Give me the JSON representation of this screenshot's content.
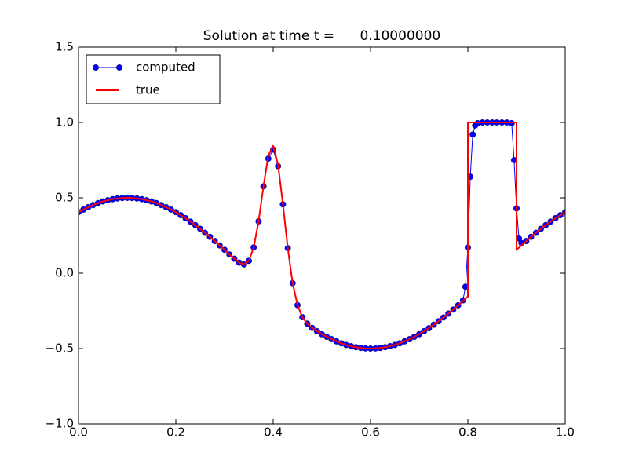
{
  "chart_data": {
    "type": "line",
    "title": "Solution at time t =      0.10000000",
    "legend": "upper left",
    "xlim": [
      0,
      1
    ],
    "ylim": [
      -1,
      1.5
    ],
    "xticks": [
      {
        "value": 0,
        "label": "0.0"
      },
      {
        "value": 0.2,
        "label": "0.2"
      },
      {
        "value": 0.4,
        "label": "0.4"
      },
      {
        "value": 0.6,
        "label": "0.6"
      },
      {
        "value": 0.8,
        "label": "0.8"
      },
      {
        "value": 1,
        "label": "1.0"
      }
    ],
    "yticks": [
      {
        "value": -1,
        "label": "−1.0"
      },
      {
        "value": -0.5,
        "label": "−0.5"
      },
      {
        "value": 0,
        "label": "0.0"
      },
      {
        "value": 0.5,
        "label": "0.5"
      },
      {
        "value": 1,
        "label": "1.0"
      },
      {
        "value": 1.5,
        "label": "1.5"
      }
    ],
    "series": [
      {
        "name": "computed",
        "color": "#0000ff",
        "marker": "o",
        "x": [
          0,
          0.01,
          0.02,
          0.03,
          0.04,
          0.05,
          0.06,
          0.07,
          0.08,
          0.09,
          0.1,
          0.11,
          0.12,
          0.13,
          0.14,
          0.15,
          0.16,
          0.17,
          0.18,
          0.19,
          0.2,
          0.21,
          0.22,
          0.23,
          0.24,
          0.25,
          0.26,
          0.27,
          0.28,
          0.29,
          0.3,
          0.31,
          0.32,
          0.33,
          0.34,
          0.35,
          0.36,
          0.37,
          0.38,
          0.39,
          0.4,
          0.41,
          0.42,
          0.43,
          0.44,
          0.45,
          0.46,
          0.47,
          0.48,
          0.49,
          0.5,
          0.51,
          0.52,
          0.53,
          0.54,
          0.55,
          0.56,
          0.57,
          0.58,
          0.59,
          0.6,
          0.61,
          0.62,
          0.63,
          0.64,
          0.65,
          0.66,
          0.67,
          0.68,
          0.69,
          0.7,
          0.71,
          0.72,
          0.73,
          0.74,
          0.75,
          0.76,
          0.77,
          0.78,
          0.79,
          0.795,
          0.8,
          0.805,
          0.81,
          0.815,
          0.82,
          0.83,
          0.84,
          0.85,
          0.86,
          0.87,
          0.88,
          0.89,
          0.895,
          0.9,
          0.905,
          0.91,
          0.92,
          0.93,
          0.94,
          0.95,
          0.96,
          0.97,
          0.98,
          0.99,
          1
        ],
        "values": [
          0.405,
          0.422,
          0.438,
          0.452,
          0.465,
          0.476,
          0.484,
          0.491,
          0.496,
          0.499,
          0.5,
          0.499,
          0.496,
          0.491,
          0.484,
          0.476,
          0.465,
          0.452,
          0.438,
          0.422,
          0.405,
          0.385,
          0.365,
          0.342,
          0.319,
          0.294,
          0.268,
          0.241,
          0.213,
          0.184,
          0.155,
          0.124,
          0.096,
          0.07,
          0.058,
          0.082,
          0.171,
          0.344,
          0.576,
          0.76,
          0.82,
          0.71,
          0.457,
          0.166,
          -0.066,
          -0.212,
          -0.292,
          -0.335,
          -0.363,
          -0.385,
          -0.405,
          -0.422,
          -0.438,
          -0.452,
          -0.465,
          -0.476,
          -0.484,
          -0.491,
          -0.496,
          -0.499,
          -0.5,
          -0.499,
          -0.496,
          -0.491,
          -0.484,
          -0.476,
          -0.465,
          -0.452,
          -0.438,
          -0.422,
          -0.405,
          -0.385,
          -0.365,
          -0.342,
          -0.319,
          -0.294,
          -0.268,
          -0.241,
          -0.213,
          -0.18,
          -0.09,
          0.17,
          0.64,
          0.92,
          0.98,
          0.995,
          1,
          1,
          1,
          1,
          1,
          1,
          0.995,
          0.75,
          0.43,
          0.23,
          0.2,
          0.213,
          0.241,
          0.268,
          0.294,
          0.319,
          0.342,
          0.365,
          0.385,
          0.405
        ]
      },
      {
        "name": "true",
        "color": "#ff0000",
        "x": [
          0,
          0.01,
          0.02,
          0.03,
          0.04,
          0.05,
          0.06,
          0.07,
          0.08,
          0.09,
          0.1,
          0.11,
          0.12,
          0.13,
          0.14,
          0.15,
          0.16,
          0.17,
          0.18,
          0.19,
          0.2,
          0.21,
          0.22,
          0.23,
          0.24,
          0.25,
          0.26,
          0.27,
          0.28,
          0.29,
          0.3,
          0.31,
          0.32,
          0.33,
          0.34,
          0.35,
          0.36,
          0.37,
          0.38,
          0.39,
          0.4,
          0.41,
          0.42,
          0.43,
          0.44,
          0.45,
          0.46,
          0.47,
          0.48,
          0.49,
          0.5,
          0.51,
          0.52,
          0.53,
          0.54,
          0.55,
          0.56,
          0.57,
          0.58,
          0.59,
          0.6,
          0.61,
          0.62,
          0.63,
          0.64,
          0.65,
          0.66,
          0.67,
          0.68,
          0.69,
          0.7,
          0.71,
          0.72,
          0.73,
          0.74,
          0.75,
          0.76,
          0.77,
          0.78,
          0.79,
          0.8,
          0.8,
          0.81,
          0.82,
          0.83,
          0.84,
          0.85,
          0.86,
          0.87,
          0.88,
          0.89,
          0.9,
          0.9,
          0.91,
          0.92,
          0.93,
          0.94,
          0.95,
          0.96,
          0.97,
          0.98,
          0.99,
          1
        ],
        "values": [
          0.405,
          0.422,
          0.438,
          0.452,
          0.465,
          0.476,
          0.484,
          0.491,
          0.496,
          0.499,
          0.5,
          0.499,
          0.496,
          0.491,
          0.484,
          0.476,
          0.465,
          0.452,
          0.438,
          0.422,
          0.405,
          0.385,
          0.365,
          0.342,
          0.319,
          0.294,
          0.268,
          0.241,
          0.213,
          0.184,
          0.155,
          0.124,
          0.096,
          0.07,
          0.058,
          0.082,
          0.171,
          0.344,
          0.576,
          0.781,
          0.845,
          0.721,
          0.457,
          0.166,
          -0.066,
          -0.212,
          -0.292,
          -0.335,
          -0.363,
          -0.385,
          -0.405,
          -0.422,
          -0.438,
          -0.452,
          -0.465,
          -0.476,
          -0.484,
          -0.491,
          -0.496,
          -0.499,
          -0.5,
          -0.499,
          -0.496,
          -0.491,
          -0.484,
          -0.476,
          -0.465,
          -0.452,
          -0.438,
          -0.422,
          -0.405,
          -0.385,
          -0.365,
          -0.342,
          -0.319,
          -0.294,
          -0.268,
          -0.241,
          -0.213,
          -0.184,
          -0.155,
          1,
          1,
          1,
          1,
          1,
          1,
          1,
          1,
          1,
          1,
          1,
          0.155,
          0.184,
          0.213,
          0.241,
          0.268,
          0.294,
          0.319,
          0.342,
          0.365,
          0.385,
          0.405
        ]
      }
    ]
  }
}
